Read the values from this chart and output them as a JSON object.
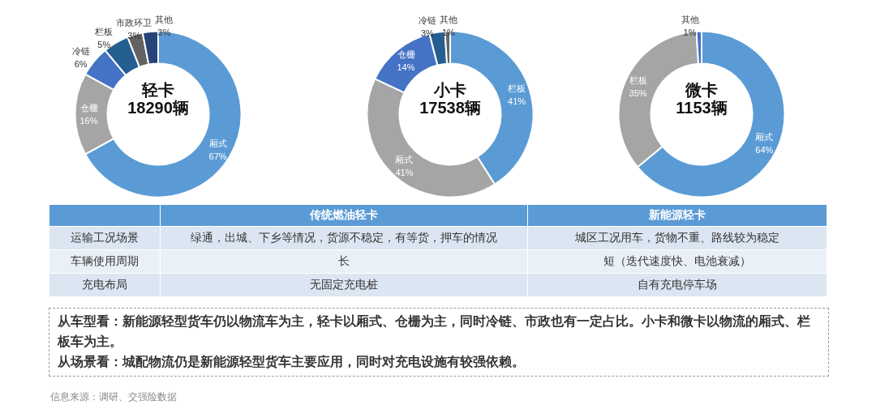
{
  "chart_data": [
    {
      "type": "donut",
      "title": "轻卡",
      "subtitle": "18290辆",
      "categories": [
        "厢式",
        "仓栅",
        "冷链",
        "栏板",
        "市政环卫",
        "其他"
      ],
      "values": [
        67,
        16,
        6,
        5,
        3,
        3
      ],
      "value_labels": [
        "67%",
        "16%",
        "6%",
        "5%",
        "3%",
        "3%"
      ],
      "colors": [
        "#5b9bd5",
        "#a5a5a5",
        "#4472c4",
        "#255e91",
        "#636363",
        "#264478"
      ]
    },
    {
      "type": "donut",
      "title": "小卡",
      "subtitle": "17538辆",
      "categories": [
        "栏板",
        "厢式",
        "仓栅",
        "冷链",
        "其他"
      ],
      "values": [
        41,
        41,
        14,
        3,
        1
      ],
      "value_labels": [
        "41%",
        "41%",
        "14%",
        "3%",
        "1%"
      ],
      "colors": [
        "#5b9bd5",
        "#a5a5a5",
        "#4472c4",
        "#255e91",
        "#636363"
      ]
    },
    {
      "type": "donut",
      "title": "微卡",
      "subtitle": "1153辆",
      "categories": [
        "厢式",
        "栏板",
        "其他"
      ],
      "values": [
        64,
        35,
        1
      ],
      "value_labels": [
        "64%",
        "35%",
        "1%"
      ],
      "colors": [
        "#5b9bd5",
        "#a5a5a5",
        "#4472c4"
      ]
    },
    {
      "type": "other",
      "categories": [
        "传统燃油轻卡",
        "新能源轻卡"
      ],
      "y_categories": [
        "运输工况场景",
        "车辆使用周期",
        "充电布局"
      ],
      "cell_labels": [
        [
          "绿通，出城、下乡等情况，货源不稳定，有等货，押车的情况",
          "城区工况用车，货物不重、路线较为稳定"
        ],
        [
          "长",
          "短（迭代速度快、电池衰减）"
        ],
        [
          "无固定充电桩",
          "自有充电停车场"
        ]
      ],
      "annotations": [
        "从车型看：新能源轻型货车仍以物流车为主，轻卡以厢式、仓栅为主，同时冷链、市政也有一定占比。小卡和微卡以物流的厢式、栏板车为主。",
        "从场景看：城配物流仍是新能源轻型货车主要应用，同时对充电设施有较强依赖。",
        "信息来源：调研、交强险数据"
      ]
    }
  ]
}
